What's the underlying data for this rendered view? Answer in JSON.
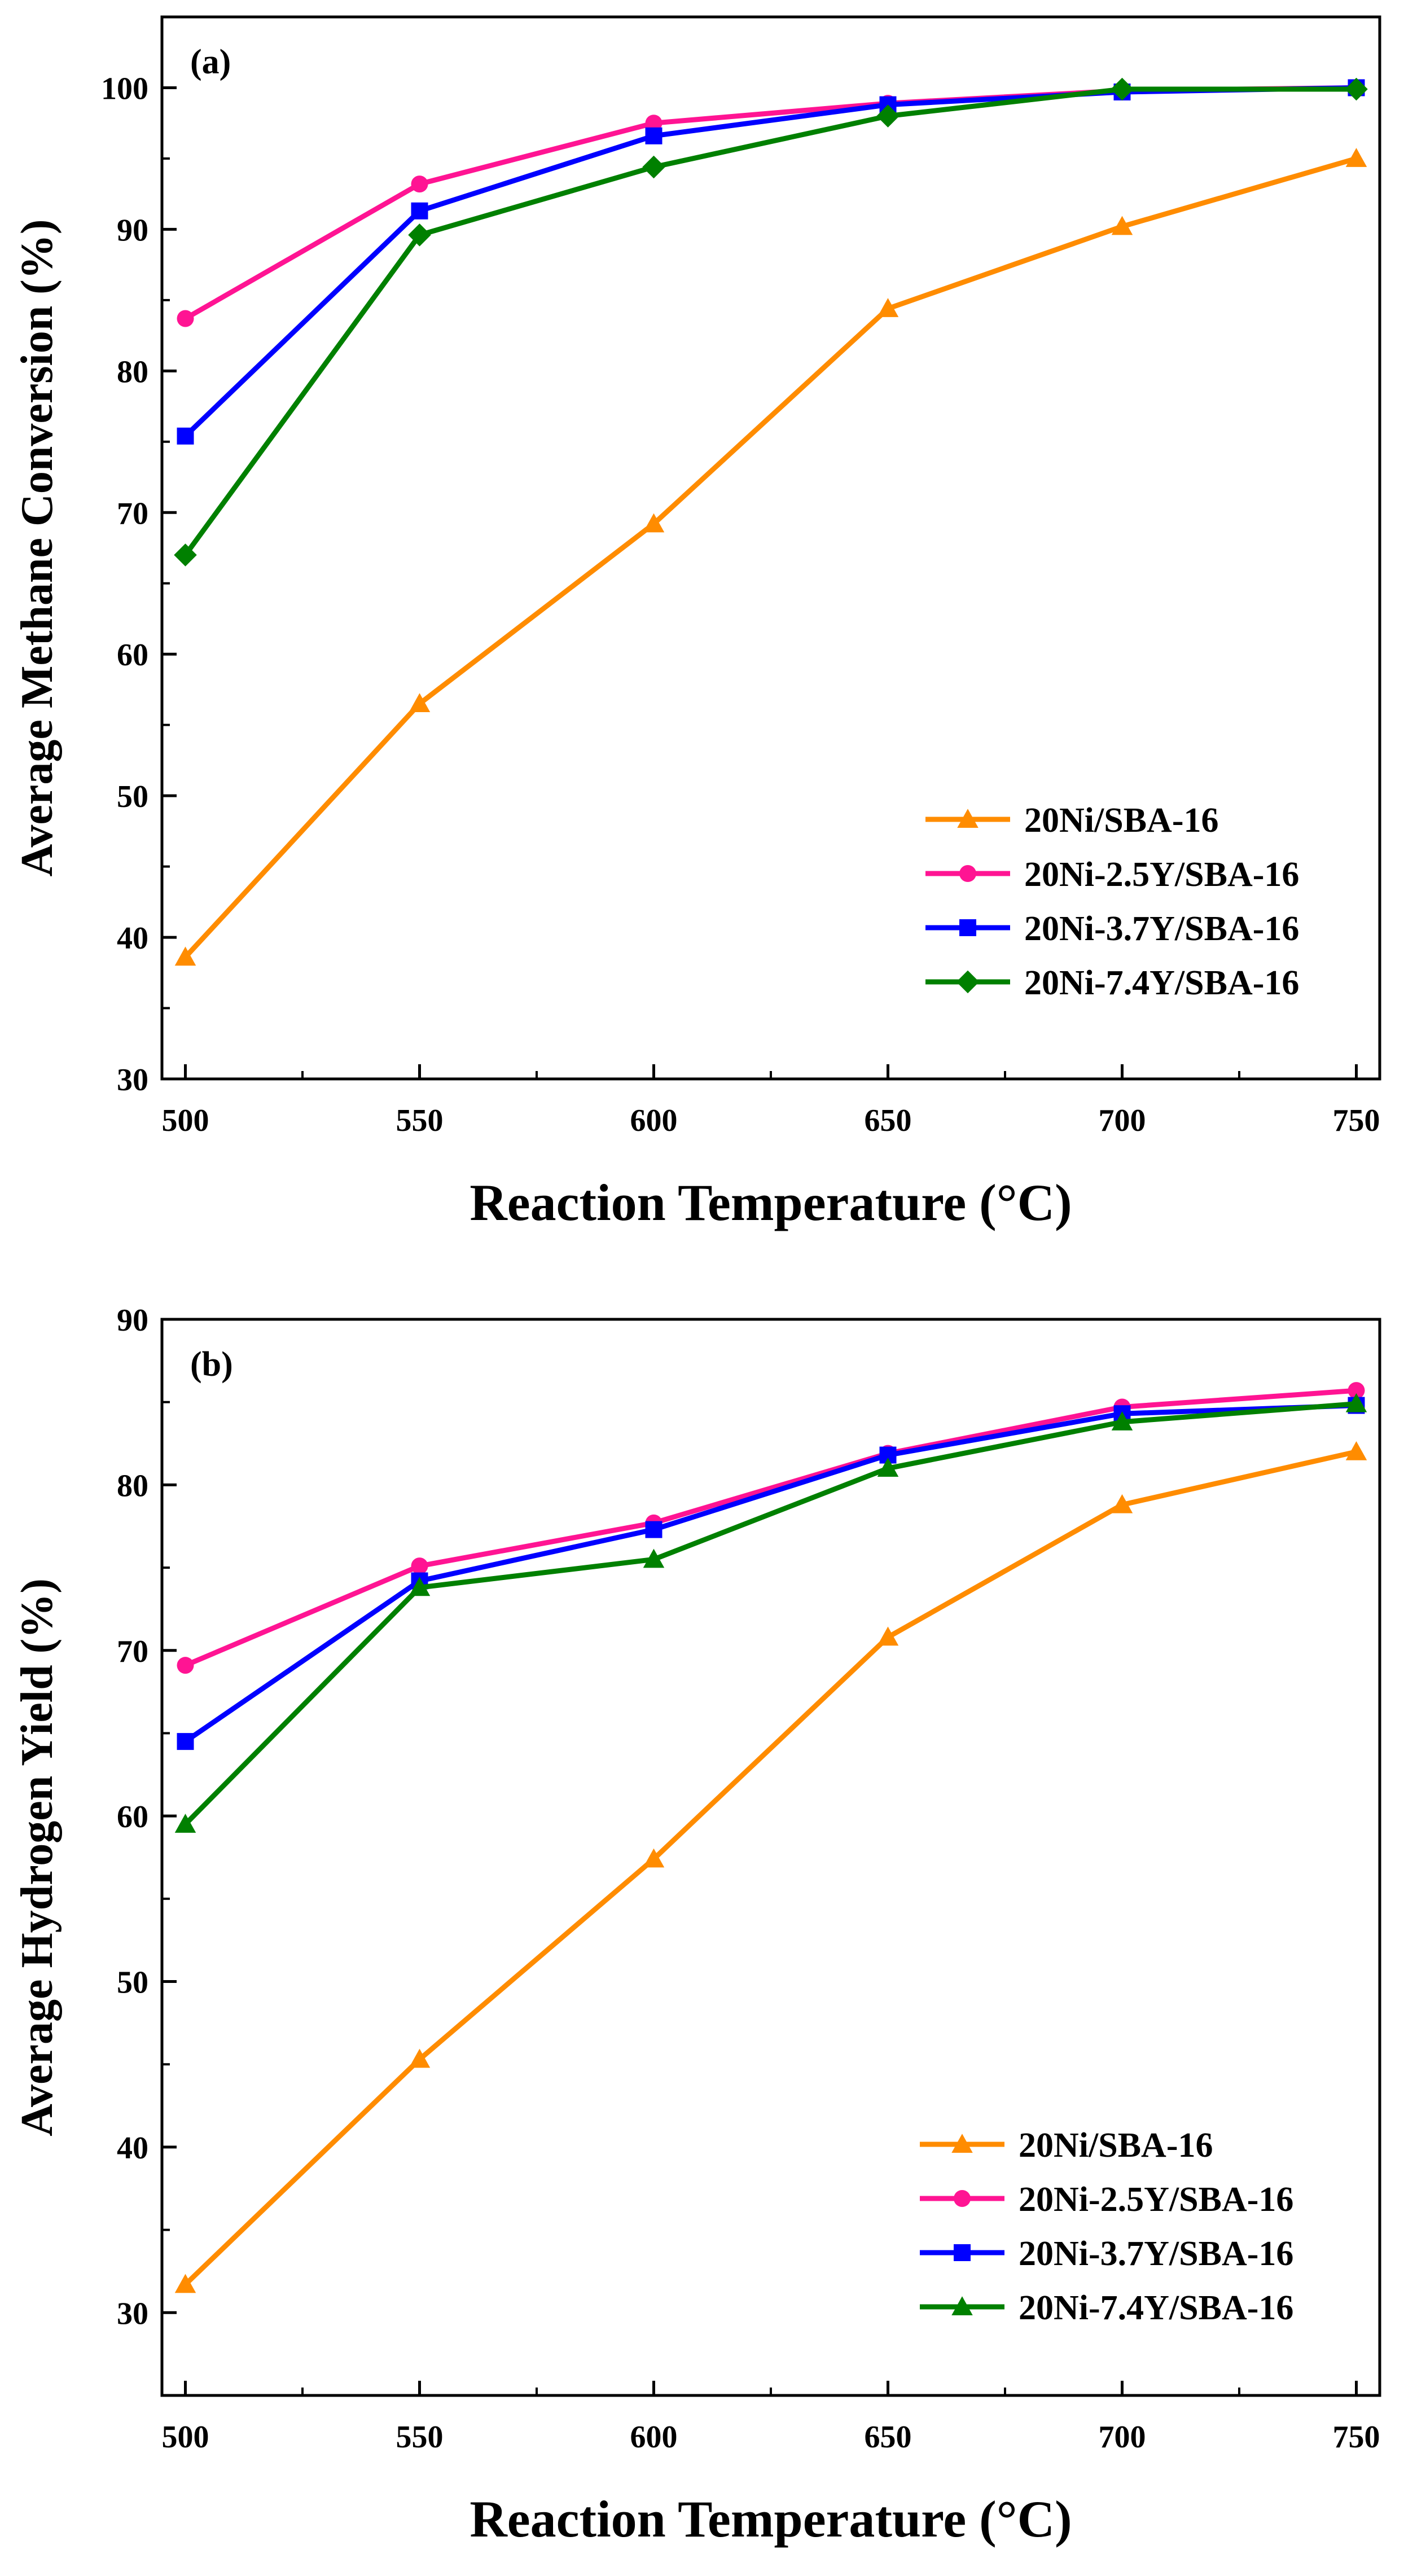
{
  "chart_data": [
    {
      "type": "line",
      "panel_label": "(a)",
      "xlabel": "Reaction Temperature (°C)",
      "ylabel": "Average Methane Conversion (%)",
      "x": [
        500,
        550,
        600,
        650,
        700,
        750
      ],
      "xlim": [
        495,
        755
      ],
      "ylim": [
        30,
        105
      ],
      "xticks": [
        500,
        550,
        600,
        650,
        700,
        750
      ],
      "yticks": [
        30,
        40,
        50,
        60,
        70,
        80,
        90,
        100
      ],
      "legend_position": "lower-right",
      "series": [
        {
          "name": "20Ni/SBA-16",
          "color": "#ff8c00",
          "marker": "triangle",
          "values": [
            38.6,
            56.5,
            69.2,
            84.4,
            90.2,
            95.0
          ]
        },
        {
          "name": "20Ni-2.5Y/SBA-16",
          "color": "#ff1493",
          "marker": "circle",
          "values": [
            83.7,
            93.2,
            97.5,
            98.9,
            99.8,
            100.0
          ]
        },
        {
          "name": "20Ni-3.7Y/SBA-16",
          "color": "#0000ff",
          "marker": "square",
          "values": [
            75.4,
            91.3,
            96.6,
            98.8,
            99.7,
            100.0
          ]
        },
        {
          "name": "20Ni-7.4Y/SBA-16",
          "color": "#008000",
          "marker": "diamond",
          "values": [
            67.0,
            89.6,
            94.4,
            98.0,
            99.9,
            99.9
          ]
        }
      ]
    },
    {
      "type": "line",
      "panel_label": "(b)",
      "xlabel": "Reaction Temperature (°C)",
      "ylabel": "Average Hydrogen Yield (%)",
      "x": [
        500,
        550,
        600,
        650,
        700,
        750
      ],
      "xlim": [
        495,
        755
      ],
      "ylim": [
        25,
        90
      ],
      "xticks": [
        500,
        550,
        600,
        650,
        700,
        750
      ],
      "yticks": [
        30,
        40,
        50,
        60,
        70,
        80,
        90
      ],
      "legend_position": "lower-right",
      "series": [
        {
          "name": "20Ni/SBA-16",
          "color": "#ff8c00",
          "marker": "triangle",
          "values": [
            31.7,
            45.3,
            57.4,
            70.8,
            78.8,
            82.0
          ]
        },
        {
          "name": "20Ni-2.5Y/SBA-16",
          "color": "#ff1493",
          "marker": "circle",
          "values": [
            69.1,
            75.1,
            77.7,
            81.9,
            84.7,
            85.7
          ]
        },
        {
          "name": "20Ni-3.7Y/SBA-16",
          "color": "#0000ff",
          "marker": "square",
          "values": [
            64.5,
            74.2,
            77.3,
            81.8,
            84.3,
            84.8
          ]
        },
        {
          "name": "20Ni-7.4Y/SBA-16",
          "color": "#008000",
          "marker": "triangle",
          "values": [
            59.5,
            73.8,
            75.5,
            81.0,
            83.8,
            84.9
          ]
        }
      ]
    }
  ]
}
